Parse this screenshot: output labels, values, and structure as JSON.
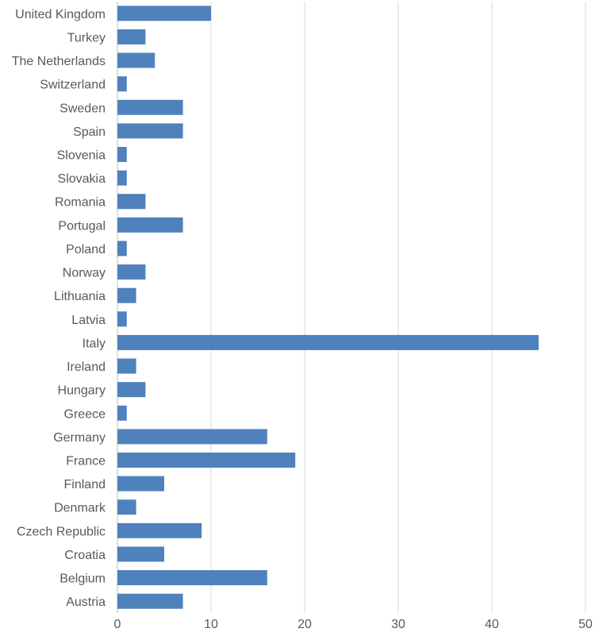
{
  "chart_data": {
    "type": "bar",
    "orientation": "horizontal",
    "categories": [
      "United Kingdom",
      "Turkey",
      "The Netherlands",
      "Switzerland",
      "Sweden",
      "Spain",
      "Slovenia",
      "Slovakia",
      "Romania",
      "Portugal",
      "Poland",
      "Norway",
      "Lithuania",
      "Latvia",
      "Italy",
      "Ireland",
      "Hungary",
      "Greece",
      "Germany",
      "France",
      "Finland",
      "Denmark",
      "Czech Republic",
      "Croatia",
      "Belgium",
      "Austria"
    ],
    "values": [
      10,
      3,
      4,
      1,
      7,
      7,
      1,
      1,
      3,
      7,
      1,
      3,
      2,
      1,
      45,
      2,
      3,
      1,
      16,
      19,
      5,
      2,
      9,
      5,
      16,
      7
    ],
    "xlim": [
      0,
      50
    ],
    "xticks": [
      "0",
      "10",
      "20",
      "30",
      "40",
      "50"
    ],
    "title": "",
    "xlabel": "",
    "ylabel": "",
    "grid": "vertical",
    "legend": "none",
    "bar_color": "#4f81bd"
  }
}
